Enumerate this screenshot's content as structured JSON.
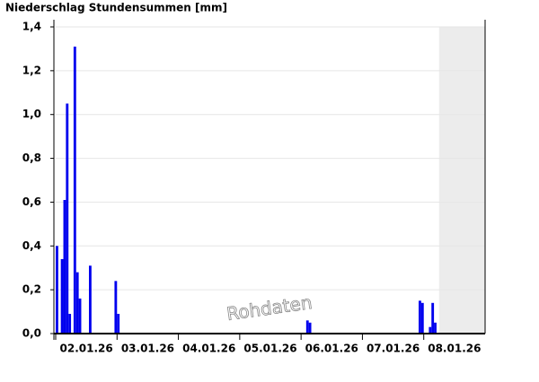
{
  "chart_data": {
    "type": "bar",
    "title": "Niederschlag Stundensummen [mm]",
    "watermark": "Rohdaten",
    "x": [
      0,
      2,
      3,
      4,
      5,
      7,
      8,
      9,
      13,
      23,
      24,
      98,
      99,
      142,
      143,
      146,
      147,
      148
    ],
    "values": [
      0.4,
      0.34,
      0.61,
      1.05,
      0.09,
      1.31,
      0.28,
      0.16,
      0.31,
      0.24,
      0.09,
      0.06,
      0.05,
      0.15,
      0.14,
      0.03,
      0.14,
      0.05
    ],
    "color": "#0000ee",
    "shaded_from": 150,
    "xlim": [
      0,
      168
    ],
    "xticks": [
      {
        "value": 12,
        "label": "02.01.26"
      },
      {
        "value": 36,
        "label": "03.01.26"
      },
      {
        "value": 60,
        "label": "04.01.26"
      },
      {
        "value": 84,
        "label": "05.01.26"
      },
      {
        "value": 108,
        "label": "06.01.26"
      },
      {
        "value": 132,
        "label": "07.01.26"
      },
      {
        "value": 156,
        "label": "08.01.26"
      }
    ],
    "ylim": [
      0,
      1.4
    ],
    "yticks": [
      {
        "value": 0,
        "label": "0,0"
      },
      {
        "value": 0.2,
        "label": "0,2"
      },
      {
        "value": 0.4,
        "label": "0,4"
      },
      {
        "value": 0.6,
        "label": "0,6"
      },
      {
        "value": 0.8,
        "label": "0,8"
      },
      {
        "value": 1.0,
        "label": "1,0"
      },
      {
        "value": 1.2,
        "label": "1,2"
      },
      {
        "value": 1.4,
        "label": "1,4"
      }
    ],
    "grid": true
  }
}
